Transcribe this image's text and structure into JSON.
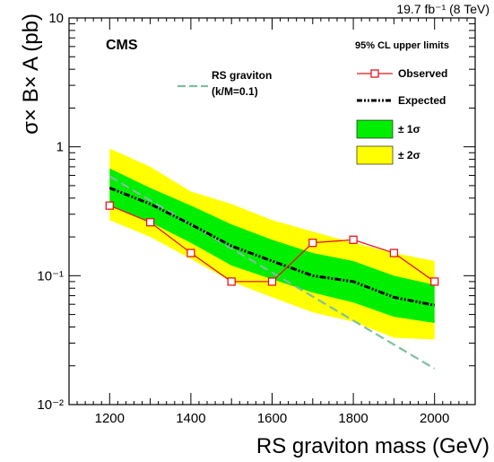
{
  "chart_data": {
    "type": "line",
    "lumi_label": "19.7 fb⁻¹ (8 TeV)",
    "experiment": "CMS",
    "legend_title": "95% CL upper limits",
    "xlabel": "RS graviton mass (GeV)",
    "ylabel": "σ× B× A (pb)",
    "xlim": [
      1100,
      2100
    ],
    "ylim": [
      0.01,
      10
    ],
    "log_y": true,
    "x_ticks": [
      "1200",
      "1400",
      "1600",
      "1800",
      "2000"
    ],
    "y_ticks": [
      {
        "value": 10,
        "label": "10"
      },
      {
        "value": 1,
        "label": "1"
      },
      {
        "value": 0.1,
        "label": "10⁻¹"
      },
      {
        "value": 0.01,
        "label": "10⁻²"
      }
    ],
    "x": [
      1200,
      1300,
      1400,
      1500,
      1600,
      1700,
      1800,
      1900,
      2000
    ],
    "series": [
      {
        "name": "Observed",
        "color": "#e8141e",
        "values": [
          0.35,
          0.26,
          0.15,
          0.09,
          0.09,
          0.18,
          0.19,
          0.15,
          0.09
        ]
      },
      {
        "name": "Expected",
        "color": "#000000",
        "values": [
          0.48,
          0.36,
          0.25,
          0.17,
          0.13,
          0.1,
          0.09,
          0.068,
          0.059
        ]
      }
    ],
    "band_1sigma": {
      "name": "± 1σ",
      "color": "#00ee00",
      "lower": [
        0.35,
        0.26,
        0.18,
        0.12,
        0.094,
        0.074,
        0.062,
        0.048,
        0.043
      ],
      "upper": [
        0.68,
        0.48,
        0.35,
        0.25,
        0.19,
        0.15,
        0.13,
        0.1,
        0.085
      ]
    },
    "band_2sigma": {
      "name": "± 2σ",
      "color": "#ffff00",
      "lower": [
        0.27,
        0.2,
        0.135,
        0.09,
        0.068,
        0.052,
        0.044,
        0.033,
        0.032
      ],
      "upper": [
        0.97,
        0.7,
        0.45,
        0.36,
        0.27,
        0.22,
        0.18,
        0.15,
        0.13
      ]
    },
    "theory": {
      "name": "RS graviton",
      "subname": "(k/M=0.1)",
      "color": "#7fbf9f",
      "x": [
        1200,
        2000
      ],
      "values": [
        0.59,
        0.019
      ]
    },
    "legend": {
      "observed": "Observed",
      "expected": "Expected",
      "one_sigma": "± 1σ",
      "two_sigma": "± 2σ"
    }
  }
}
